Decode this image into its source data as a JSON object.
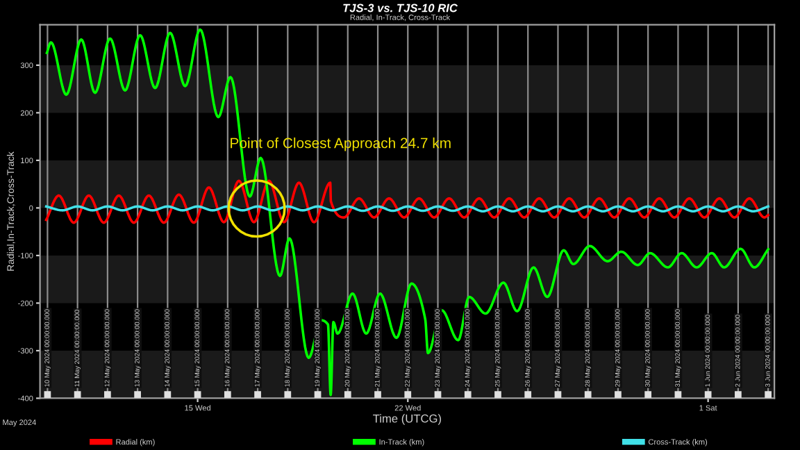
{
  "chart_data": {
    "type": "line",
    "title": "TJS-3 vs. TJS-10 RIC",
    "subtitle": "Radial, In-Track, Cross-Track",
    "xlabel": "Time (UTCG)",
    "ylabel": "Radial,In-Track,Cross-Track",
    "xlim": [
      "2024-05-09T18:00",
      "2024-06-03T05:00"
    ],
    "xticks": [
      {
        "value": "2024-05-15",
        "label": "15 Wed"
      },
      {
        "value": "2024-05-22",
        "label": "22 Wed"
      },
      {
        "value": "2024-06-01",
        "label": "1 Sat"
      }
    ],
    "ylim": [
      -400,
      385
    ],
    "yticks": [
      -400,
      -300,
      -200,
      -100,
      0,
      100,
      200,
      300
    ],
    "grid": false,
    "legend": "bottom",
    "annotations": [
      "Point of Closest Approach 24.7 km",
      "May 2024"
    ],
    "bands": [
      {
        "axis": "y",
        "from": 200,
        "to": 300,
        "color": "#1a1a1a"
      },
      {
        "axis": "y",
        "from": 0,
        "to": 100,
        "color": "#1a1a1a"
      },
      {
        "axis": "y",
        "from": -200,
        "to": -100,
        "color": "#1a1a1a"
      },
      {
        "axis": "y",
        "from": -400,
        "to": -300,
        "color": "#1a1a1a"
      }
    ],
    "ref_lines": [
      {
        "axis": "x",
        "value": "2024-05-10",
        "label": "10 May 2024 00:00:00.000",
        "color": "#8c8c8c"
      },
      {
        "axis": "x",
        "value": "2024-05-11",
        "label": "11 May 2024 00:00:00.000",
        "color": "#8c8c8c"
      },
      {
        "axis": "x",
        "value": "2024-05-12",
        "label": "12 May 2024 00:00:00.000",
        "color": "#8c8c8c"
      },
      {
        "axis": "x",
        "value": "2024-05-13",
        "label": "13 May 2024 00:00:00.000",
        "color": "#8c8c8c"
      },
      {
        "axis": "x",
        "value": "2024-05-14",
        "label": "14 May 2024 00:00:00.000",
        "color": "#8c8c8c"
      },
      {
        "axis": "x",
        "value": "2024-05-15",
        "label": "15 May 2024 00:00:00.000",
        "color": "#8c8c8c"
      },
      {
        "axis": "x",
        "value": "2024-05-16",
        "label": "16 May 2024 00:00:00.000",
        "color": "#8c8c8c"
      },
      {
        "axis": "x",
        "value": "2024-05-17",
        "label": "17 May 2024 00:00:00.000",
        "color": "#8c8c8c"
      },
      {
        "axis": "x",
        "value": "2024-05-18",
        "label": "18 May 2024 00:00:00.000",
        "color": "#8c8c8c"
      },
      {
        "axis": "x",
        "value": "2024-05-19",
        "label": "19 May 2024 00:00:00.000",
        "color": "#8c8c8c"
      },
      {
        "axis": "x",
        "value": "2024-05-20",
        "label": "20 May 2024 00:00:00.000",
        "color": "#8c8c8c"
      },
      {
        "axis": "x",
        "value": "2024-05-21",
        "label": "21 May 2024 00:00:00.000",
        "color": "#8c8c8c"
      },
      {
        "axis": "x",
        "value": "2024-05-22",
        "label": "22 May 2024 00:00:00.000",
        "color": "#8c8c8c"
      },
      {
        "axis": "x",
        "value": "2024-05-23",
        "label": "23 May 2024 00:00:00.000",
        "color": "#8c8c8c"
      },
      {
        "axis": "x",
        "value": "2024-05-24",
        "label": "24 May 2024 00:00:00.000",
        "color": "#8c8c8c"
      },
      {
        "axis": "x",
        "value": "2024-05-25",
        "label": "25 May 2024 00:00:00.000",
        "color": "#8c8c8c"
      },
      {
        "axis": "x",
        "value": "2024-05-26",
        "label": "26 May 2024 00:00:00.000",
        "color": "#8c8c8c"
      },
      {
        "axis": "x",
        "value": "2024-05-27",
        "label": "27 May 2024 00:00:00.000",
        "color": "#8c8c8c"
      },
      {
        "axis": "x",
        "value": "2024-05-28",
        "label": "28 May 2024 00:00:00.000",
        "color": "#8c8c8c"
      },
      {
        "axis": "x",
        "value": "2024-05-29",
        "label": "29 May 2024 00:00:00.000",
        "color": "#8c8c8c"
      },
      {
        "axis": "x",
        "value": "2024-05-30",
        "label": "30 May 2024 00:00:00.000",
        "color": "#8c8c8c"
      },
      {
        "axis": "x",
        "value": "2024-05-31",
        "label": "31 May 2024 00:00:00.000",
        "color": "#8c8c8c"
      },
      {
        "axis": "x",
        "value": "2024-06-01",
        "label": "1 Jun 2024 00:00:00.000",
        "color": "#8c8c8c"
      },
      {
        "axis": "x",
        "value": "2024-06-02",
        "label": "2 Jun 2024 00:00:00.000",
        "color": "#8c8c8c"
      },
      {
        "axis": "x",
        "value": "2024-06-03",
        "label": "3 Jun 2024 00:00:00.000",
        "color": "#8c8c8c"
      }
    ],
    "series": [
      {
        "name": "Radial (km)",
        "color": "#ff0000",
        "x": [
          "2024-05-09T23:00",
          "2024-05-10T09:00",
          "2024-05-10T21:00",
          "2024-05-11T09:00",
          "2024-05-11T21:00",
          "2024-05-12T09:00",
          "2024-05-12T21:00",
          "2024-05-13T09:00",
          "2024-05-13T21:00",
          "2024-05-14T09:00",
          "2024-05-14T21:00",
          "2024-05-15T09:00",
          "2024-05-15T21:00",
          "2024-05-16T09:00",
          "2024-05-16T21:00",
          "2024-05-17T09:00",
          "2024-05-17T21:00",
          "2024-05-18T09:00",
          "2024-05-18T21:00",
          "2024-05-19T10:00",
          "2024-05-19T10:30",
          "2024-05-19T21:00",
          "2024-05-20T09:00",
          "2024-05-20T21:00",
          "2024-05-21T09:00",
          "2024-05-21T21:00",
          "2024-05-22T09:00",
          "2024-05-22T21:00",
          "2024-05-23T09:00",
          "2024-05-23T21:00",
          "2024-05-24T09:00",
          "2024-05-24T21:00",
          "2024-05-25T09:00",
          "2024-05-25T21:00",
          "2024-05-26T09:00",
          "2024-05-26T21:00",
          "2024-05-27T09:00",
          "2024-05-27T21:00",
          "2024-05-28T09:00",
          "2024-05-28T21:00",
          "2024-05-29T09:00",
          "2024-05-29T21:00",
          "2024-05-30T09:00",
          "2024-05-30T21:00",
          "2024-05-31T09:00",
          "2024-05-31T21:00",
          "2024-06-01T09:00",
          "2024-06-01T21:00",
          "2024-06-02T09:00",
          "2024-06-02T21:00",
          "2024-06-03T00:00"
        ],
        "values": [
          -25,
          26,
          -31,
          26,
          -31,
          26,
          -31,
          26,
          -31,
          28,
          -31,
          43,
          -30,
          57,
          -30,
          57,
          -30,
          53,
          -30,
          53,
          14,
          -20,
          20,
          -20,
          20,
          -20,
          20,
          -20,
          20,
          -20,
          20,
          -20,
          20,
          -20,
          20,
          -20,
          20,
          -20,
          20,
          -20,
          20,
          -20,
          20,
          -20,
          20,
          -20,
          20,
          -20,
          20,
          -20,
          -15
        ]
      },
      {
        "name": "In-Track (km)",
        "color": "#00ff00",
        "x": [
          "2024-05-09T23:30",
          "2024-05-10T02:45",
          "2024-05-10T15:00",
          "2024-05-11T03:00",
          "2024-05-11T14:00",
          "2024-05-12T02:00",
          "2024-05-12T14:00",
          "2024-05-13T02:00",
          "2024-05-13T14:00",
          "2024-05-14T02:00",
          "2024-05-14T14:00",
          "2024-05-15T02:00",
          "2024-05-15T16:30",
          "2024-05-16T02:15",
          "2024-05-16T17:40",
          "2024-05-17T02:25",
          "2024-05-17T17:45",
          "2024-05-18T01:25",
          "2024-05-18T16:45",
          "2024-05-19T02:40",
          "2024-05-19T08:10",
          "2024-05-19T10:20",
          "2024-05-19T12:30",
          "2024-05-19T15:50",
          "2024-05-20T03:50",
          "2024-05-20T14:45",
          "2024-05-21T01:45",
          "2024-05-21T14:55",
          "2024-05-22T02:57",
          "2024-05-22T13:55",
          "2024-05-22T16:06",
          "2024-05-23T03:05",
          "2024-05-23T16:14",
          "2024-05-24T01:00",
          "2024-05-24T14:08",
          "2024-05-25T04:23",
          "2024-05-25T15:20",
          "2024-05-26T04:30",
          "2024-05-26T15:27",
          "2024-05-27T04:36",
          "2024-05-27T12:16",
          "2024-05-28T01:25",
          "2024-05-28T15:40",
          "2024-05-29T02:38",
          "2024-05-29T15:48",
          "2024-05-30T01:38",
          "2024-05-30T15:53",
          "2024-05-31T02:51",
          "2024-05-31T14:54",
          "2024-06-01T02:57",
          "2024-06-01T12:49",
          "2024-06-02T01:58",
          "2024-06-02T12:56",
          "2024-06-03T00:00"
        ],
        "values": [
          326,
          348,
          238,
          354,
          242,
          356,
          247,
          363,
          252,
          368,
          256,
          375,
          191,
          275,
          24,
          105,
          -143,
          -64,
          -315,
          -236,
          -245,
          -393,
          -240,
          -264,
          -180,
          -264,
          -180,
          -273,
          -159,
          -234,
          -305,
          -215,
          -278,
          -187,
          -222,
          -157,
          -217,
          -125,
          -187,
          -89,
          -118,
          -80,
          -112,
          -92,
          -120,
          -95,
          -125,
          -95,
          -125,
          -95,
          -125,
          -86,
          -125,
          -87
        ]
      },
      {
        "name": "Cross-Track (km)",
        "color": "#40e0e8",
        "x": [
          "2024-05-09T23:00",
          "2024-05-10T12:00",
          "2024-05-11T00:00",
          "2024-05-11T12:00",
          "2024-05-12T00:00",
          "2024-05-12T12:00",
          "2024-05-13T00:00",
          "2024-05-13T12:00",
          "2024-05-14T00:00",
          "2024-05-14T12:00",
          "2024-05-15T00:00",
          "2024-05-15T12:00",
          "2024-05-16T00:00",
          "2024-05-16T12:00",
          "2024-05-17T00:00",
          "2024-05-17T12:00",
          "2024-05-18T00:00",
          "2024-05-18T12:00",
          "2024-05-19T00:00",
          "2024-05-19T12:00",
          "2024-05-20T00:00",
          "2024-05-20T12:00",
          "2024-05-21T00:00",
          "2024-05-21T12:00",
          "2024-05-22T00:00",
          "2024-05-22T12:00",
          "2024-05-23T00:00",
          "2024-05-23T12:00",
          "2024-05-24T00:00",
          "2024-05-24T12:00",
          "2024-05-25T00:00",
          "2024-05-25T12:00",
          "2024-05-26T00:00",
          "2024-05-26T12:00",
          "2024-05-27T00:00",
          "2024-05-27T12:00",
          "2024-05-28T00:00",
          "2024-05-28T12:00",
          "2024-05-29T00:00",
          "2024-05-29T12:00",
          "2024-05-30T00:00",
          "2024-05-30T12:00",
          "2024-05-31T00:00",
          "2024-05-31T12:00",
          "2024-06-01T00:00",
          "2024-06-01T12:00",
          "2024-06-02T00:00",
          "2024-06-02T12:00",
          "2024-06-03T00:00"
        ],
        "values": [
          3,
          -5,
          3,
          -5,
          3,
          -5,
          3,
          -5,
          3,
          -5,
          3,
          -5,
          3,
          -5,
          3,
          -5,
          3,
          -5,
          3,
          -5,
          3,
          -6,
          3,
          -6,
          3,
          -6,
          3,
          -6,
          3,
          -7,
          3,
          -7,
          3,
          -7,
          3,
          -7,
          3,
          -7,
          3,
          -7,
          3,
          -7,
          3,
          -7,
          3,
          -7,
          3,
          -7,
          3
        ]
      }
    ]
  }
}
